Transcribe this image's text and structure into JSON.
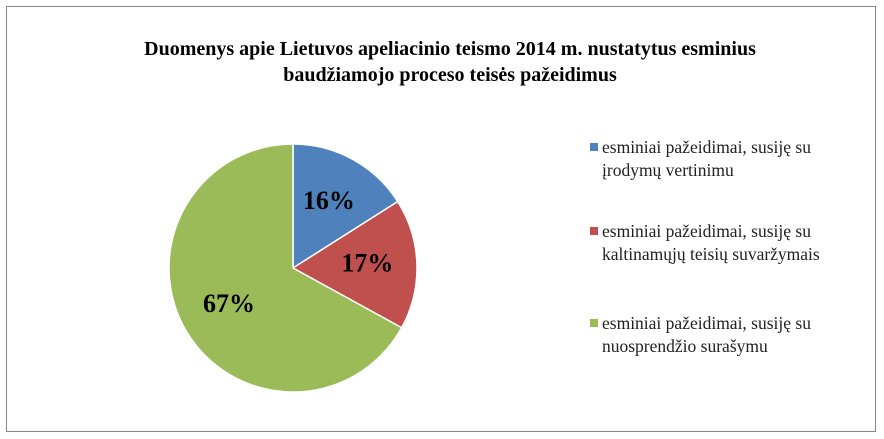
{
  "chart_data": {
    "type": "pie",
    "title": "Duomenys apie Lietuvos apeliacinio teismo 2014 m. nustatytus esminius baudžiamojo proceso teisės pažeidimus",
    "series": [
      {
        "name": "esminiai pažeidimai, susiję su įrodymų vertinimu",
        "color": "#4f81bd",
        "values": [
          16
        ],
        "value_labels": [
          "16%"
        ]
      },
      {
        "name": "esminiai pažeidimai, susiję su kaltinamųjų teisių suvaržymais",
        "color": "#c0504d",
        "values": [
          17
        ],
        "value_labels": [
          "17%"
        ]
      },
      {
        "name": "esminiai pažeidimai, susiję su nuosprendžio surašymu",
        "color": "#9bbb59",
        "values": [
          67
        ],
        "value_labels": [
          "67%"
        ]
      }
    ],
    "legend": "right"
  }
}
